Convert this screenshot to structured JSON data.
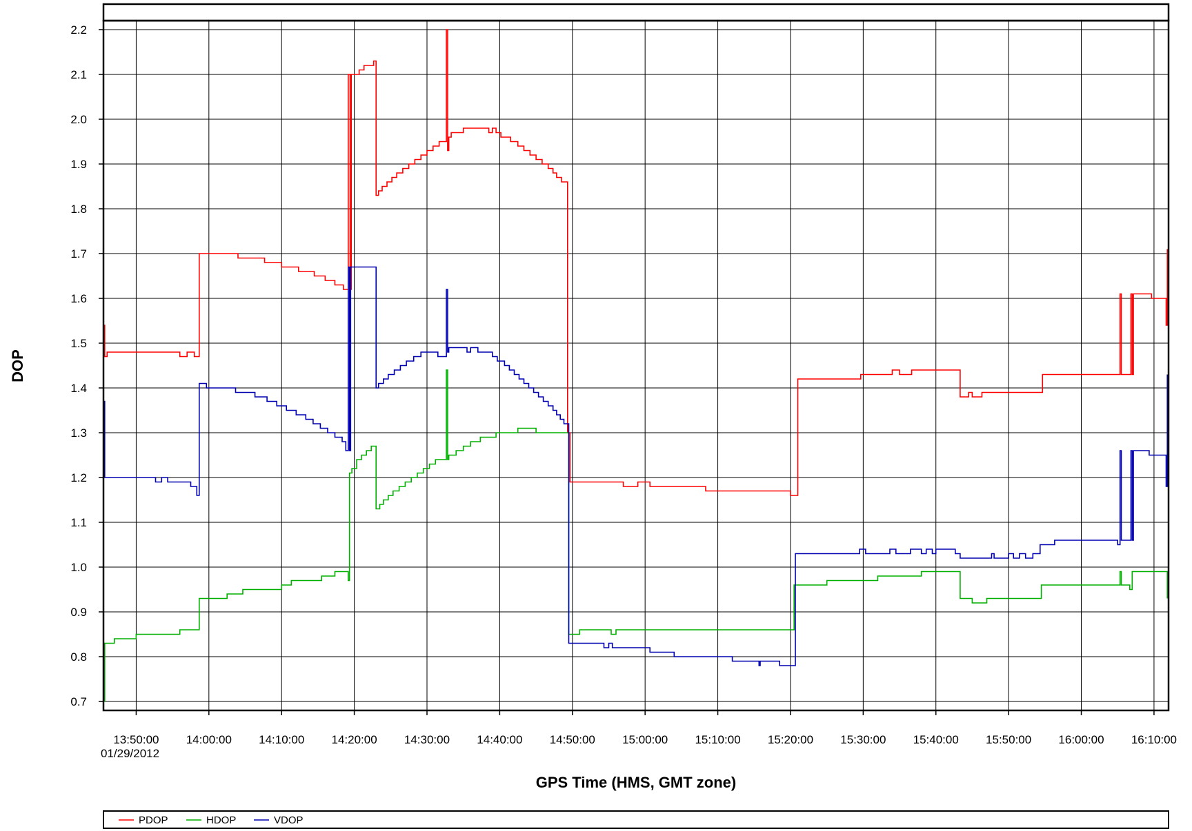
{
  "chart_data": {
    "type": "line",
    "title": "",
    "xlabel": "GPS Time (HMS, GMT zone)",
    "ylabel": "DOP",
    "date_label": "01/29/2012",
    "xlim": [
      "13:45:30",
      "16:12:00"
    ],
    "ylim": [
      0.68,
      2.22
    ],
    "grid": true,
    "legend_position": "bottom",
    "x_ticks": [
      "13:50:00",
      "14:00:00",
      "14:10:00",
      "14:20:00",
      "14:30:00",
      "14:40:00",
      "14:50:00",
      "15:00:00",
      "15:10:00",
      "15:20:00",
      "15:30:00",
      "15:40:00",
      "15:50:00",
      "16:00:00",
      "16:10:00"
    ],
    "y_ticks": [
      "0.7",
      "0.8",
      "0.9",
      "1.0",
      "1.1",
      "1.2",
      "1.3",
      "1.4",
      "1.5",
      "1.6",
      "1.7",
      "1.8",
      "1.9",
      "2.0",
      "2.1",
      "2.2"
    ],
    "series": [
      {
        "name": "PDOP",
        "color": "#ff0000",
        "points": [
          [
            "13:45:30",
            1.54
          ],
          [
            "13:45:40",
            1.47
          ],
          [
            "13:46:00",
            1.48
          ],
          [
            "13:56:00",
            1.47
          ],
          [
            "13:57:00",
            1.48
          ],
          [
            "13:58:00",
            1.47
          ],
          [
            "13:58:40",
            1.7
          ],
          [
            "14:04:00",
            1.69
          ],
          [
            "14:07:40",
            1.68
          ],
          [
            "14:10:00",
            1.67
          ],
          [
            "14:12:20",
            1.66
          ],
          [
            "14:14:30",
            1.65
          ],
          [
            "14:16:00",
            1.64
          ],
          [
            "14:17:20",
            1.63
          ],
          [
            "14:18:30",
            1.62
          ],
          [
            "14:19:10",
            2.1
          ],
          [
            "14:19:25",
            1.62
          ],
          [
            "14:19:35",
            2.1
          ],
          [
            "14:20:40",
            2.11
          ],
          [
            "14:21:20",
            2.12
          ],
          [
            "14:22:40",
            2.13
          ],
          [
            "14:23:00",
            1.83
          ],
          [
            "14:23:20",
            1.84
          ],
          [
            "14:23:50",
            1.85
          ],
          [
            "14:24:30",
            1.86
          ],
          [
            "14:25:10",
            1.87
          ],
          [
            "14:25:50",
            1.88
          ],
          [
            "14:26:40",
            1.89
          ],
          [
            "14:27:30",
            1.9
          ],
          [
            "14:28:20",
            1.91
          ],
          [
            "14:29:10",
            1.92
          ],
          [
            "14:30:00",
            1.93
          ],
          [
            "14:30:50",
            1.94
          ],
          [
            "14:31:40",
            1.95
          ],
          [
            "14:32:40",
            2.2
          ],
          [
            "14:32:50",
            1.93
          ],
          [
            "14:33:00",
            1.96
          ],
          [
            "14:33:20",
            1.97
          ],
          [
            "14:35:00",
            1.98
          ],
          [
            "14:38:30",
            1.97
          ],
          [
            "14:39:00",
            1.98
          ],
          [
            "14:39:30",
            1.97
          ],
          [
            "14:40:10",
            1.96
          ],
          [
            "14:41:30",
            1.95
          ],
          [
            "14:42:30",
            1.94
          ],
          [
            "14:43:20",
            1.93
          ],
          [
            "14:44:10",
            1.92
          ],
          [
            "14:45:00",
            1.91
          ],
          [
            "14:45:50",
            1.9
          ],
          [
            "14:46:40",
            1.89
          ],
          [
            "14:47:20",
            1.88
          ],
          [
            "14:47:50",
            1.87
          ],
          [
            "14:48:30",
            1.86
          ],
          [
            "14:49:20",
            1.3
          ],
          [
            "14:49:40",
            1.19
          ],
          [
            "14:57:00",
            1.18
          ],
          [
            "14:59:00",
            1.19
          ],
          [
            "15:00:40",
            1.18
          ],
          [
            "15:08:20",
            1.17
          ],
          [
            "15:20:00",
            1.16
          ],
          [
            "15:21:00",
            1.42
          ],
          [
            "15:29:40",
            1.43
          ],
          [
            "15:34:00",
            1.44
          ],
          [
            "15:35:00",
            1.43
          ],
          [
            "15:36:40",
            1.44
          ],
          [
            "15:43:20",
            1.38
          ],
          [
            "15:44:30",
            1.39
          ],
          [
            "15:45:00",
            1.38
          ],
          [
            "15:46:20",
            1.39
          ],
          [
            "15:54:40",
            1.43
          ],
          [
            "16:05:20",
            1.61
          ],
          [
            "16:05:30",
            1.43
          ],
          [
            "16:06:50",
            1.61
          ],
          [
            "16:07:00",
            1.43
          ],
          [
            "16:07:10",
            1.61
          ],
          [
            "16:09:40",
            1.6
          ],
          [
            "16:11:40",
            1.54
          ],
          [
            "16:11:50",
            1.71
          ]
        ]
      },
      {
        "name": "HDOP",
        "color": "#00b000",
        "points": [
          [
            "13:45:30",
            0.7
          ],
          [
            "13:45:40",
            0.83
          ],
          [
            "13:47:00",
            0.84
          ],
          [
            "13:50:00",
            0.85
          ],
          [
            "13:56:00",
            0.86
          ],
          [
            "13:58:40",
            0.93
          ],
          [
            "14:02:30",
            0.94
          ],
          [
            "14:04:40",
            0.95
          ],
          [
            "14:10:00",
            0.96
          ],
          [
            "14:11:20",
            0.97
          ],
          [
            "14:15:30",
            0.98
          ],
          [
            "14:17:20",
            0.99
          ],
          [
            "14:19:10",
            0.97
          ],
          [
            "14:19:20",
            1.21
          ],
          [
            "14:19:40",
            1.22
          ],
          [
            "14:20:20",
            1.24
          ],
          [
            "14:21:00",
            1.25
          ],
          [
            "14:21:40",
            1.26
          ],
          [
            "14:22:20",
            1.27
          ],
          [
            "14:23:00",
            1.13
          ],
          [
            "14:23:30",
            1.14
          ],
          [
            "14:24:00",
            1.15
          ],
          [
            "14:24:40",
            1.16
          ],
          [
            "14:25:20",
            1.17
          ],
          [
            "14:26:10",
            1.18
          ],
          [
            "14:27:00",
            1.19
          ],
          [
            "14:27:50",
            1.2
          ],
          [
            "14:28:40",
            1.21
          ],
          [
            "14:29:30",
            1.22
          ],
          [
            "14:30:20",
            1.23
          ],
          [
            "14:31:10",
            1.24
          ],
          [
            "14:32:40",
            1.44
          ],
          [
            "14:32:50",
            1.24
          ],
          [
            "14:33:00",
            1.25
          ],
          [
            "14:34:00",
            1.26
          ],
          [
            "14:35:00",
            1.27
          ],
          [
            "14:36:00",
            1.28
          ],
          [
            "14:37:20",
            1.29
          ],
          [
            "14:39:30",
            1.3
          ],
          [
            "14:42:30",
            1.31
          ],
          [
            "14:45:00",
            1.3
          ],
          [
            "14:49:30",
            0.85
          ],
          [
            "14:51:00",
            0.86
          ],
          [
            "14:55:20",
            0.85
          ],
          [
            "14:56:00",
            0.86
          ],
          [
            "15:20:30",
            0.96
          ],
          [
            "15:25:00",
            0.97
          ],
          [
            "15:32:00",
            0.98
          ],
          [
            "15:38:00",
            0.99
          ],
          [
            "15:42:00",
            0.99
          ],
          [
            "15:43:20",
            0.93
          ],
          [
            "15:45:00",
            0.92
          ],
          [
            "15:47:00",
            0.93
          ],
          [
            "15:54:30",
            0.96
          ],
          [
            "16:05:20",
            0.99
          ],
          [
            "16:05:30",
            0.96
          ],
          [
            "16:06:40",
            0.95
          ],
          [
            "16:07:00",
            0.99
          ],
          [
            "16:11:50",
            0.93
          ]
        ]
      },
      {
        "name": "VDOP",
        "color": "#0000b0",
        "points": [
          [
            "13:45:30",
            1.37
          ],
          [
            "13:45:40",
            1.2
          ],
          [
            "13:52:40",
            1.19
          ],
          [
            "13:53:30",
            1.2
          ],
          [
            "13:54:20",
            1.19
          ],
          [
            "13:57:30",
            1.18
          ],
          [
            "13:58:20",
            1.16
          ],
          [
            "13:58:40",
            1.41
          ],
          [
            "13:59:40",
            1.4
          ],
          [
            "14:03:40",
            1.39
          ],
          [
            "14:06:20",
            1.38
          ],
          [
            "14:08:00",
            1.37
          ],
          [
            "14:09:20",
            1.36
          ],
          [
            "14:10:40",
            1.35
          ],
          [
            "14:12:00",
            1.34
          ],
          [
            "14:13:20",
            1.33
          ],
          [
            "14:14:20",
            1.32
          ],
          [
            "14:15:20",
            1.31
          ],
          [
            "14:16:20",
            1.3
          ],
          [
            "14:17:20",
            1.29
          ],
          [
            "14:18:20",
            1.28
          ],
          [
            "14:18:50",
            1.26
          ],
          [
            "14:19:10",
            1.67
          ],
          [
            "14:19:20",
            1.26
          ],
          [
            "14:19:30",
            1.67
          ],
          [
            "14:23:00",
            1.4
          ],
          [
            "14:23:20",
            1.41
          ],
          [
            "14:24:00",
            1.42
          ],
          [
            "14:24:40",
            1.43
          ],
          [
            "14:25:30",
            1.44
          ],
          [
            "14:26:20",
            1.45
          ],
          [
            "14:27:10",
            1.46
          ],
          [
            "14:28:10",
            1.47
          ],
          [
            "14:29:10",
            1.48
          ],
          [
            "14:31:30",
            1.47
          ],
          [
            "14:32:40",
            1.62
          ],
          [
            "14:32:50",
            1.48
          ],
          [
            "14:33:00",
            1.49
          ],
          [
            "14:35:30",
            1.48
          ],
          [
            "14:36:00",
            1.49
          ],
          [
            "14:37:00",
            1.48
          ],
          [
            "14:39:00",
            1.47
          ],
          [
            "14:39:40",
            1.46
          ],
          [
            "14:40:40",
            1.45
          ],
          [
            "14:41:20",
            1.44
          ],
          [
            "14:42:00",
            1.43
          ],
          [
            "14:42:40",
            1.42
          ],
          [
            "14:43:20",
            1.41
          ],
          [
            "14:44:00",
            1.4
          ],
          [
            "14:44:40",
            1.39
          ],
          [
            "14:45:20",
            1.38
          ],
          [
            "14:46:00",
            1.37
          ],
          [
            "14:46:40",
            1.36
          ],
          [
            "14:47:20",
            1.35
          ],
          [
            "14:47:50",
            1.34
          ],
          [
            "14:48:20",
            1.33
          ],
          [
            "14:48:50",
            1.32
          ],
          [
            "14:49:30",
            0.83
          ],
          [
            "14:54:20",
            0.82
          ],
          [
            "14:55:00",
            0.83
          ],
          [
            "14:55:30",
            0.82
          ],
          [
            "15:00:40",
            0.81
          ],
          [
            "15:04:00",
            0.8
          ],
          [
            "15:12:00",
            0.79
          ],
          [
            "15:15:40",
            0.78
          ],
          [
            "15:15:50",
            0.79
          ],
          [
            "15:18:30",
            0.78
          ],
          [
            "15:20:40",
            1.03
          ],
          [
            "15:29:30",
            1.04
          ],
          [
            "15:30:20",
            1.03
          ],
          [
            "15:33:40",
            1.04
          ],
          [
            "15:34:30",
            1.03
          ],
          [
            "15:36:30",
            1.04
          ],
          [
            "15:38:00",
            1.03
          ],
          [
            "15:38:40",
            1.04
          ],
          [
            "15:39:30",
            1.03
          ],
          [
            "15:40:00",
            1.04
          ],
          [
            "15:42:40",
            1.03
          ],
          [
            "15:43:20",
            1.02
          ],
          [
            "15:47:40",
            1.03
          ],
          [
            "15:48:00",
            1.02
          ],
          [
            "15:50:00",
            1.03
          ],
          [
            "15:50:40",
            1.02
          ],
          [
            "15:51:30",
            1.03
          ],
          [
            "15:52:20",
            1.02
          ],
          [
            "15:53:20",
            1.03
          ],
          [
            "15:54:20",
            1.05
          ],
          [
            "15:56:20",
            1.06
          ],
          [
            "16:05:00",
            1.05
          ],
          [
            "16:05:20",
            1.26
          ],
          [
            "16:05:30",
            1.06
          ],
          [
            "16:06:50",
            1.26
          ],
          [
            "16:07:00",
            1.06
          ],
          [
            "16:07:10",
            1.26
          ],
          [
            "16:09:20",
            1.25
          ],
          [
            "16:11:40",
            1.18
          ],
          [
            "16:11:50",
            1.43
          ]
        ]
      }
    ]
  }
}
